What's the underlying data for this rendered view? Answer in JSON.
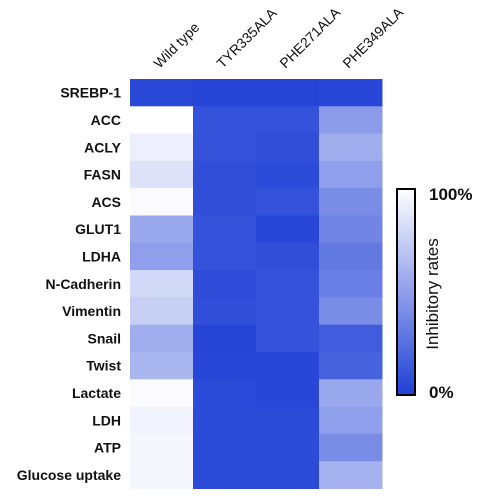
{
  "chart_data": {
    "type": "heatmap",
    "rows": [
      "SREBP-1",
      "ACC",
      "ACLY",
      "FASN",
      "ACS",
      "GLUT1",
      "LDHA",
      "N-Cadherin",
      "Vimentin",
      "Snail",
      "Twist",
      "Lactate",
      "LDH",
      "ATP",
      "Glucose uptake"
    ],
    "columns": [
      "Wild type",
      "TYR335ALA",
      "PHE271ALA",
      "PHE349ALA"
    ],
    "values": [
      [
        0.05,
        0.03,
        0.03,
        0.04
      ],
      [
        1.0,
        0.1,
        0.1,
        0.48
      ],
      [
        0.92,
        0.1,
        0.08,
        0.58
      ],
      [
        0.85,
        0.08,
        0.06,
        0.5
      ],
      [
        0.98,
        0.08,
        0.1,
        0.4
      ],
      [
        0.55,
        0.1,
        0.04,
        0.36
      ],
      [
        0.5,
        0.1,
        0.08,
        0.3
      ],
      [
        0.8,
        0.07,
        0.1,
        0.33
      ],
      [
        0.75,
        0.08,
        0.1,
        0.4
      ],
      [
        0.58,
        0.03,
        0.1,
        0.15
      ],
      [
        0.62,
        0.04,
        0.04,
        0.18
      ],
      [
        0.98,
        0.06,
        0.04,
        0.55
      ],
      [
        0.94,
        0.06,
        0.06,
        0.5
      ],
      [
        0.96,
        0.06,
        0.06,
        0.4
      ],
      [
        0.95,
        0.06,
        0.06,
        0.6
      ]
    ],
    "colorbar": {
      "title": "Inhibitory rates",
      "min_label": "0%",
      "max_label": "100%",
      "range": [
        0,
        1
      ]
    },
    "colors": {
      "low": "#1f3fd6",
      "high": "#ffffff"
    }
  }
}
